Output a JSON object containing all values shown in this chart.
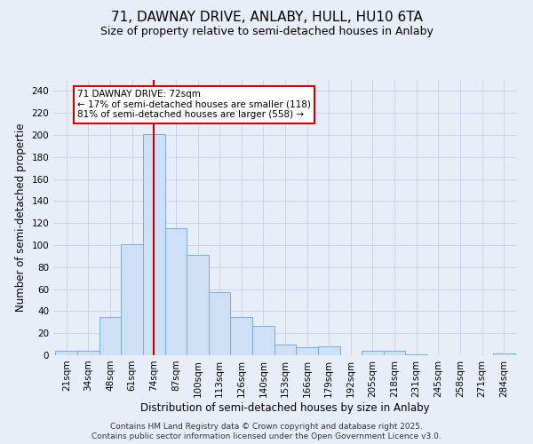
{
  "title1": "71, DAWNAY DRIVE, ANLABY, HULL, HU10 6TA",
  "title2": "Size of property relative to semi-detached houses in Anlaby",
  "xlabel": "Distribution of semi-detached houses by size in Anlaby",
  "ylabel": "Number of semi-detached propertie",
  "categories": [
    "21sqm",
    "34sqm",
    "48sqm",
    "61sqm",
    "74sqm",
    "87sqm",
    "100sqm",
    "113sqm",
    "126sqm",
    "140sqm",
    "153sqm",
    "166sqm",
    "179sqm",
    "192sqm",
    "205sqm",
    "218sqm",
    "231sqm",
    "245sqm",
    "258sqm",
    "271sqm",
    "284sqm"
  ],
  "values": [
    4,
    4,
    35,
    101,
    201,
    115,
    91,
    57,
    35,
    27,
    10,
    7,
    8,
    0,
    4,
    4,
    1,
    0,
    0,
    0,
    2
  ],
  "bar_color": "#cde0f5",
  "bar_edge_color": "#7aacdc",
  "vline_x": 4,
  "vline_color": "#cc0000",
  "annotation_text": "71 DAWNAY DRIVE: 72sqm\n← 17% of semi-detached houses are smaller (118)\n81% of semi-detached houses are larger (558) →",
  "annotation_box_color": "#ffffff",
  "annotation_box_edge": "#cc0000",
  "ylim": [
    0,
    250
  ],
  "yticks": [
    0,
    20,
    40,
    60,
    80,
    100,
    120,
    140,
    160,
    180,
    200,
    220,
    240
  ],
  "footer1": "Contains HM Land Registry data © Crown copyright and database right 2025.",
  "footer2": "Contains public sector information licensed under the Open Government Licence v3.0.",
  "background_color": "#e8eef8",
  "plot_bg_color": "#e8eef8",
  "grid_color": "#c8d4e8",
  "title1_fontsize": 11,
  "title2_fontsize": 9,
  "tick_fontsize": 7.5,
  "label_fontsize": 8.5,
  "footer_fontsize": 6.5,
  "annotation_fontsize": 7.5
}
